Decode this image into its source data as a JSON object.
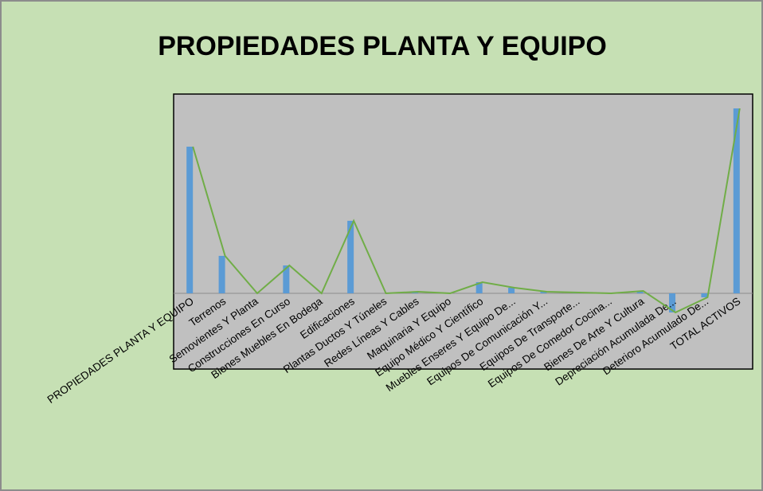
{
  "chart_data": {
    "type": "bar",
    "title": "PROPIEDADES PLANTA Y EQUIPO",
    "categories": [
      "PROPIEDADES  PLANTA Y EQUIPO",
      "Terrenos",
      "Semovientes Y Planta",
      "Construcciones En Curso",
      "Bienes Muebles En Bodega",
      "Edificaciones",
      "Plantas  Ductos Y Túneles",
      "Redes  Líneas Y Cables",
      "Maquinaria Y Equipo",
      "Equipo Médico Y Científico",
      "Muebles  Enseres Y Equipo De...",
      "Equipos De Comunicación Y...",
      "Equipos De Transporte...",
      "Equipos De Comedor  Cocina...",
      "Bienes De Arte Y Cultura",
      "Depreciación Acumulada De...",
      "Deterioro Acumulado De...",
      "TOTAL ACTIVOS"
    ],
    "values": [
      184,
      47,
      0,
      35,
      0,
      91,
      0,
      2,
      0,
      14,
      7,
      2,
      1,
      0,
      3,
      -24,
      -5,
      232
    ],
    "color": "#5b9bd5",
    "line_color": "#70ad47",
    "ylim": [
      -95,
      250
    ]
  }
}
